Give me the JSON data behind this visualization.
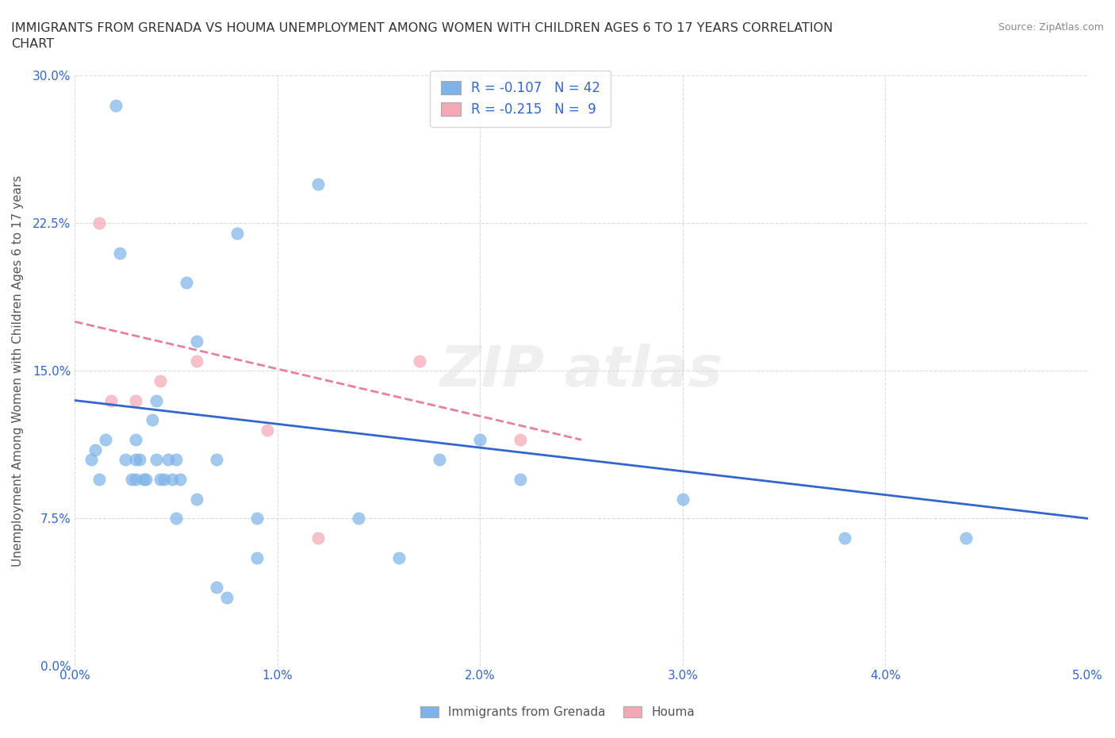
{
  "title": "IMMIGRANTS FROM GRENADA VS HOUMA UNEMPLOYMENT AMONG WOMEN WITH CHILDREN AGES 6 TO 17 YEARS CORRELATION\nCHART",
  "source": "Source: ZipAtlas.com",
  "ylabel": "Unemployment Among Women with Children Ages 6 to 17 years",
  "xlabel": "",
  "xlim": [
    0.0,
    0.05
  ],
  "ylim": [
    0.0,
    0.3
  ],
  "yticks": [
    0.0,
    0.075,
    0.15,
    0.225,
    0.3
  ],
  "yticklabels": [
    "0.0%",
    "7.5%",
    "15.0%",
    "22.5%",
    "30.0%"
  ],
  "xticks": [
    0.0,
    0.01,
    0.02,
    0.03,
    0.04,
    0.05
  ],
  "xticklabels": [
    "0.0%",
    "1.0%",
    "2.0%",
    "3.0%",
    "4.0%",
    "5.0%"
  ],
  "blue_scatter_x": [
    0.0008,
    0.001,
    0.0012,
    0.0015,
    0.002,
    0.0022,
    0.0025,
    0.0028,
    0.003,
    0.003,
    0.003,
    0.0032,
    0.0034,
    0.0035,
    0.0038,
    0.004,
    0.004,
    0.0042,
    0.0044,
    0.0046,
    0.0048,
    0.005,
    0.005,
    0.0052,
    0.0055,
    0.006,
    0.006,
    0.007,
    0.007,
    0.0075,
    0.008,
    0.009,
    0.009,
    0.012,
    0.014,
    0.016,
    0.018,
    0.02,
    0.022,
    0.03,
    0.038,
    0.044
  ],
  "blue_scatter_y": [
    0.105,
    0.11,
    0.095,
    0.115,
    0.285,
    0.21,
    0.105,
    0.095,
    0.105,
    0.115,
    0.095,
    0.105,
    0.095,
    0.095,
    0.125,
    0.135,
    0.105,
    0.095,
    0.095,
    0.105,
    0.095,
    0.105,
    0.075,
    0.095,
    0.195,
    0.165,
    0.085,
    0.105,
    0.04,
    0.035,
    0.22,
    0.055,
    0.075,
    0.245,
    0.075,
    0.055,
    0.105,
    0.115,
    0.095,
    0.085,
    0.065,
    0.065
  ],
  "pink_scatter_x": [
    0.0012,
    0.0018,
    0.003,
    0.0042,
    0.006,
    0.0095,
    0.012,
    0.017,
    0.022
  ],
  "pink_scatter_y": [
    0.225,
    0.135,
    0.135,
    0.145,
    0.155,
    0.12,
    0.065,
    0.155,
    0.115
  ],
  "blue_line_x": [
    0.0,
    0.05
  ],
  "blue_line_y": [
    0.135,
    0.075
  ],
  "pink_line_x": [
    0.0,
    0.025
  ],
  "pink_line_y": [
    0.175,
    0.115
  ],
  "blue_color": "#7EB3E8",
  "pink_color": "#F4A7B5",
  "blue_line_color": "#3366CC",
  "pink_line_color": "#E87EA0",
  "legend_r1": "R = -0.107   N = 42",
  "legend_r2": "R = -0.215   N =  9",
  "watermark": "ZIPatlas",
  "legend_labels": [
    "Immigrants from Grenada",
    "Houma"
  ],
  "background_color": "#FFFFFF",
  "grid_color": "#CCCCCC"
}
